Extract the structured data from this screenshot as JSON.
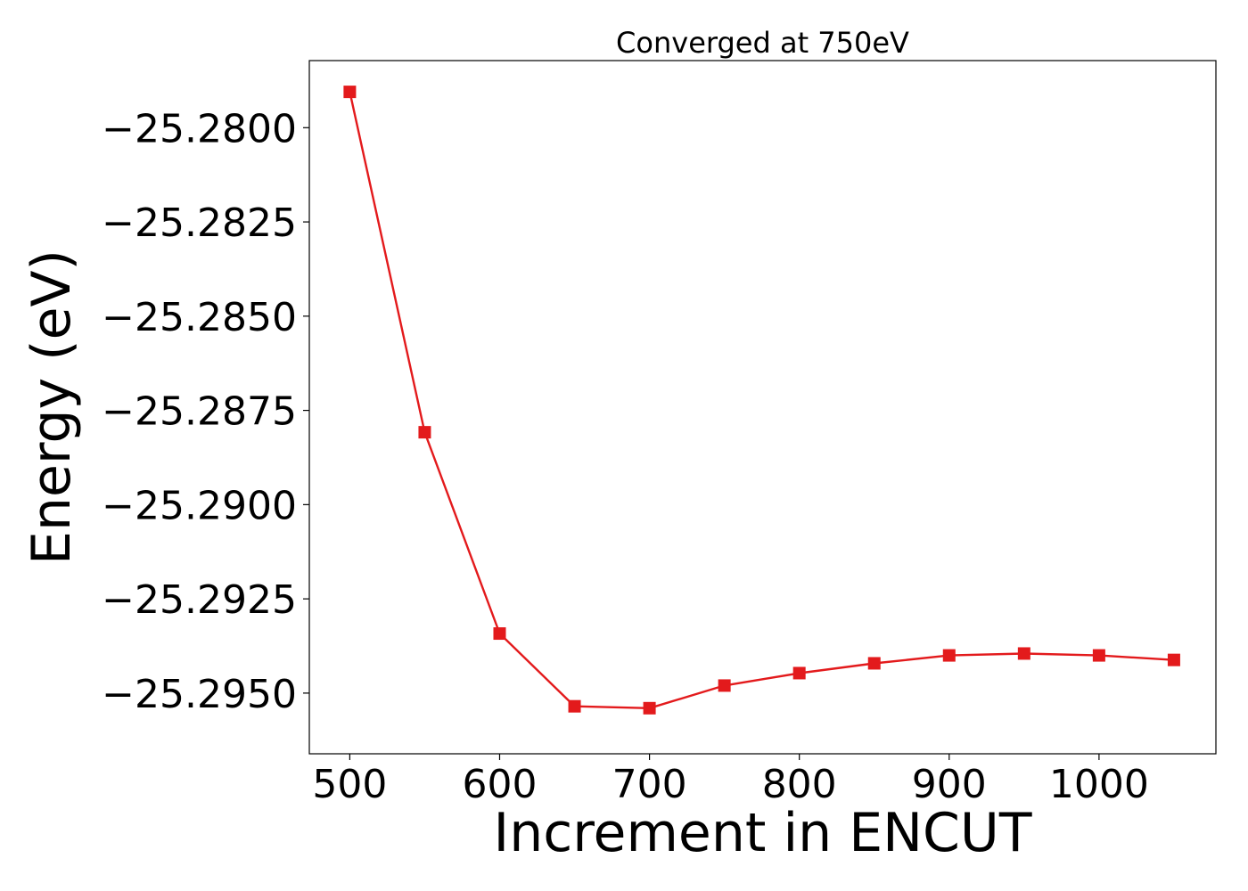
{
  "chart_data": {
    "type": "line",
    "title": "Converged at 750eV",
    "xlabel": "Increment in ENCUT",
    "ylabel": "Energy (eV)",
    "x": [
      500,
      550,
      600,
      650,
      700,
      750,
      800,
      850,
      900,
      950,
      1000,
      1050
    ],
    "series": [
      {
        "values": [
          -25.27905,
          -25.28808,
          -25.29342,
          -25.29535,
          -25.2954,
          -25.2948,
          -25.29447,
          -25.29421,
          -25.294,
          -25.29395,
          -25.294,
          -25.29412
        ],
        "color": "#e31a1c",
        "marker": "square"
      }
    ],
    "xticks": [
      500,
      600,
      700,
      800,
      900,
      1000
    ],
    "xtick_labels": [
      "500",
      "600",
      "700",
      "800",
      "900",
      "1000"
    ],
    "yticks": [
      -25.28,
      -25.2825,
      -25.285,
      -25.2875,
      -25.29,
      -25.2925,
      -25.295
    ],
    "ytick_labels": [
      "−25.2800",
      "−25.2825",
      "−25.2850",
      "−25.2875",
      "−25.2900",
      "−25.2925",
      "−25.2950"
    ],
    "xlim": [
      473,
      1078
    ],
    "ylim": [
      -25.29661,
      -25.27822
    ],
    "grid": false,
    "legend": false
  }
}
